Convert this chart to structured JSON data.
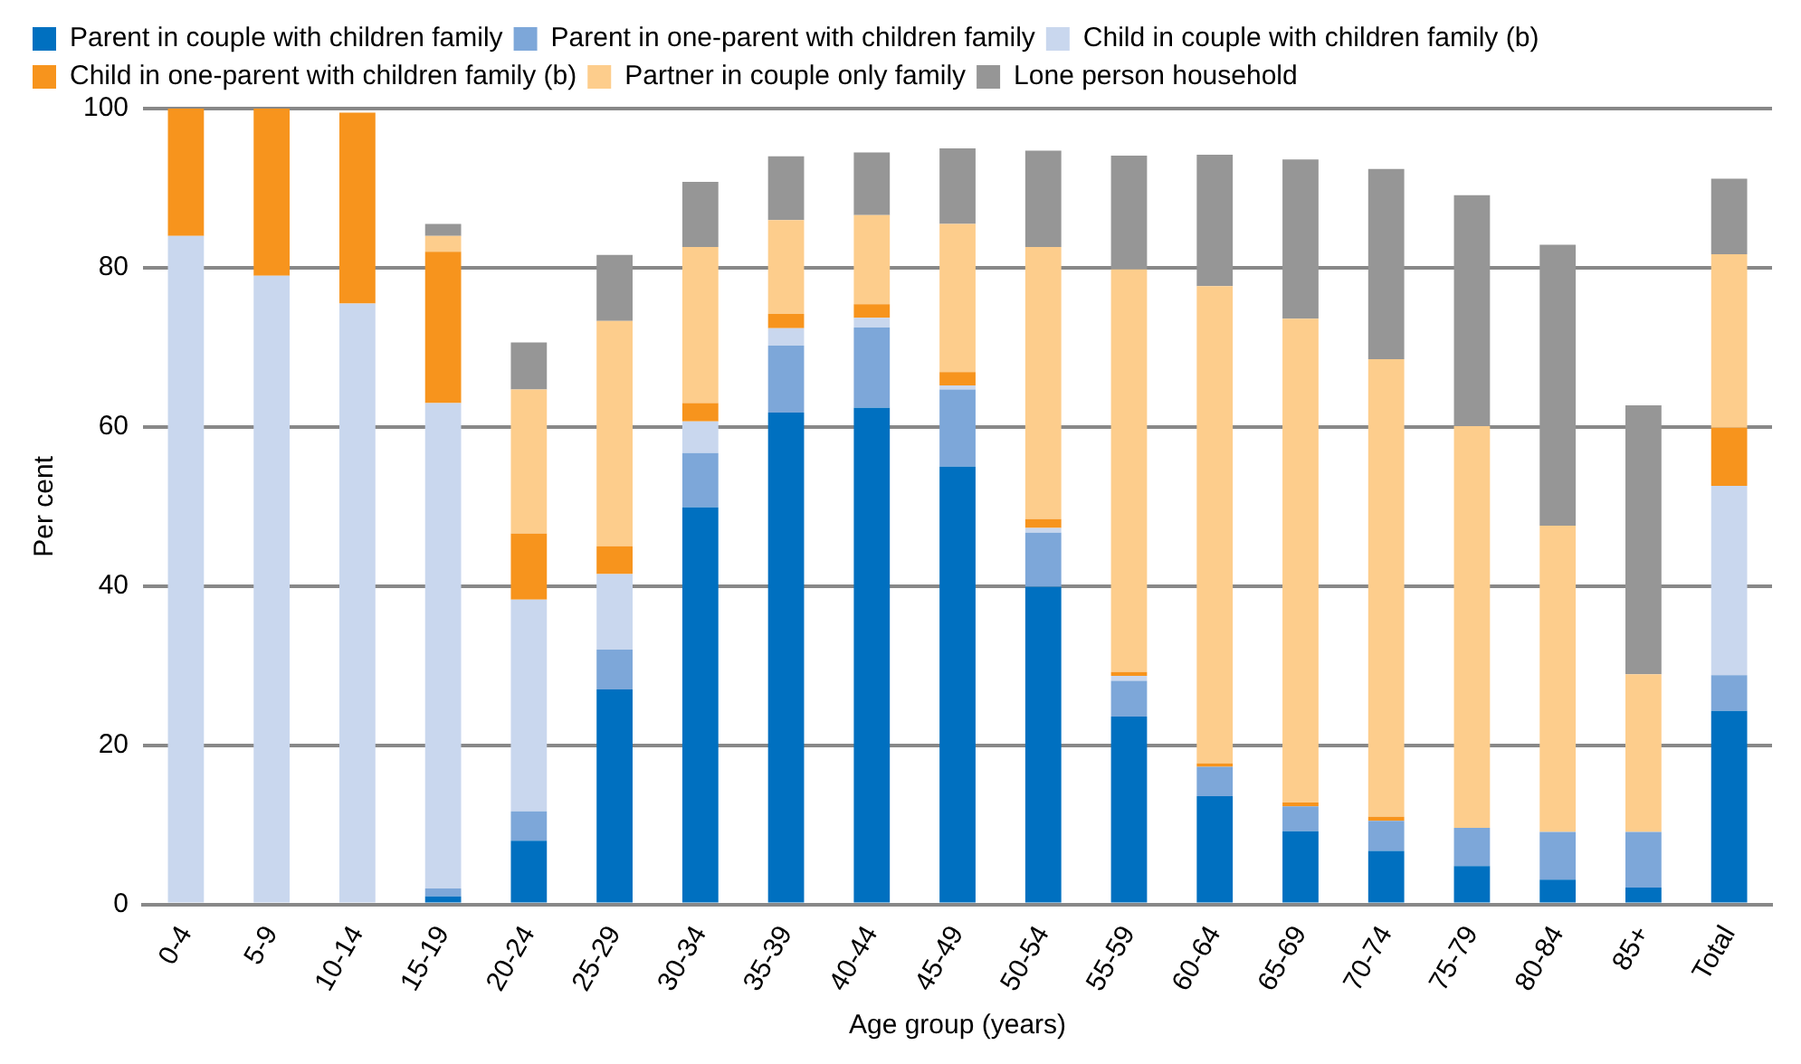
{
  "chart_data": {
    "type": "bar",
    "stacked": true,
    "xlabel": "Age group (years)",
    "ylabel": "Per cent",
    "categories": [
      "0-4",
      "5-9",
      "10-14",
      "15-19",
      "20-24",
      "25-29",
      "30-34",
      "35-39",
      "40-44",
      "45-49",
      "50-54",
      "55-59",
      "60-64",
      "65-69",
      "70-74",
      "75-79",
      "80-84",
      "85+",
      "Total"
    ],
    "series": [
      {
        "name": "Parent in couple with children family",
        "color": "#0070c0",
        "values": [
          0,
          0,
          0,
          1,
          8,
          27,
          49.9,
          61.8,
          62.4,
          55,
          39.9,
          23.6,
          13.6,
          9.2,
          6.7,
          4.8,
          3.1,
          2.1,
          24.3
        ]
      },
      {
        "name": "Parent in one-parent with children family",
        "color": "#7da7d9",
        "values": [
          0,
          0,
          0,
          1,
          3.7,
          5,
          6.8,
          8.4,
          10.1,
          9.7,
          6.8,
          4.5,
          3.7,
          3.1,
          3.8,
          4.8,
          6,
          7,
          4.5
        ]
      },
      {
        "name": "Child in couple with children family (b)",
        "color": "#c9d7ee",
        "values": [
          84,
          79,
          75.5,
          61,
          26.6,
          9.5,
          4,
          2.2,
          1.2,
          0.5,
          0.6,
          0.6,
          null,
          0,
          0,
          0,
          0,
          0,
          23.8
        ]
      },
      {
        "name": "Child in one-parent with children family (b)",
        "color": "#f7941d",
        "values": [
          16,
          21,
          24,
          19,
          8.3,
          3.5,
          2.3,
          1.8,
          1.7,
          1.7,
          1.1,
          0.5,
          0.4,
          0.5,
          0.5,
          0,
          0,
          0,
          7.3
        ]
      },
      {
        "name": "Partner in couple only family",
        "color": "#fdcd8c",
        "values": [
          0,
          0,
          0,
          2,
          18.1,
          28.3,
          19.6,
          11.8,
          11.2,
          18.6,
          34.2,
          50.6,
          60,
          60.8,
          57.5,
          50.5,
          38.5,
          19.8,
          21.8
        ]
      },
      {
        "name": "Lone person household",
        "color": "#969696",
        "values": [
          0,
          0,
          0,
          1.5,
          5.9,
          8.3,
          8.2,
          8,
          7.9,
          9.5,
          12.1,
          14.3,
          16.5,
          20,
          23.9,
          29,
          35.3,
          33.8,
          9.5
        ]
      }
    ],
    "ylim": [
      0,
      100
    ],
    "yticks": [
      0,
      20,
      40,
      60,
      80,
      100
    ],
    "grid": "y",
    "legend": "top"
  }
}
